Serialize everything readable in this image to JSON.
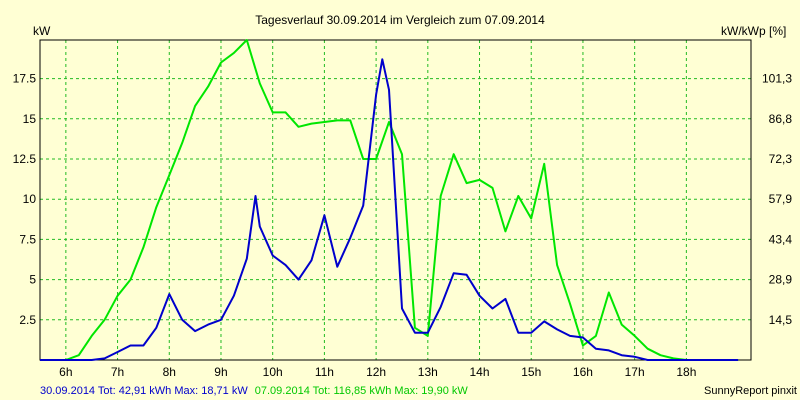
{
  "chart_data": {
    "type": "line",
    "title": "Tagesverlauf 30.09.2014 im Vergleich zum 07.09.2014",
    "ylabel_left": "kW",
    "ylabel_right": "kW/kWp [%]",
    "ylim": [
      0,
      19.9
    ],
    "xlim": [
      5.5,
      19.25
    ],
    "grid": true,
    "x_ticks": [
      6,
      7,
      8,
      9,
      10,
      11,
      12,
      13,
      14,
      15,
      16,
      17,
      18
    ],
    "x_tick_labels": [
      "6h",
      "7h",
      "8h",
      "9h",
      "10h",
      "11h",
      "12h",
      "13h",
      "14h",
      "15h",
      "16h",
      "17h",
      "18h"
    ],
    "y_ticks": [
      2.5,
      5,
      7.5,
      10,
      12.5,
      15,
      17.5
    ],
    "y_tick_labels": [
      "2.5",
      "5",
      "7.5",
      "10",
      "12.5",
      "15",
      "17.5"
    ],
    "y2_tick_labels": [
      "14,5",
      "28,9",
      "43,4",
      "57,9",
      "72,3",
      "86,8",
      "101,3"
    ],
    "series": [
      {
        "name": "30.09.2014",
        "color": "#0000cc",
        "summary": "30.09.2014 Tot: 42,91 kWh Max: 18,71 kW",
        "x": [
          5.5,
          6.5,
          6.75,
          7.0,
          7.25,
          7.5,
          7.75,
          8.0,
          8.25,
          8.5,
          8.75,
          9.0,
          9.25,
          9.5,
          9.667,
          9.75,
          10.0,
          10.25,
          10.5,
          10.75,
          11.0,
          11.25,
          11.5,
          11.75,
          12.0,
          12.12,
          12.25,
          12.5,
          12.75,
          13.0,
          13.25,
          13.5,
          13.75,
          14.0,
          14.25,
          14.5,
          14.75,
          15.0,
          15.25,
          15.5,
          15.75,
          16.0,
          16.25,
          16.5,
          16.75,
          17.0,
          17.25,
          17.5,
          17.75,
          18.0,
          18.25,
          18.5,
          18.75,
          19.0
        ],
        "y": [
          0,
          0,
          0.1,
          0.5,
          0.9,
          0.9,
          2.0,
          4.1,
          2.5,
          1.8,
          2.2,
          2.5,
          4.0,
          6.3,
          10.2,
          8.3,
          6.5,
          5.9,
          5.0,
          6.2,
          9.0,
          5.8,
          7.6,
          9.6,
          16.5,
          18.7,
          16.8,
          3.2,
          1.7,
          1.7,
          3.3,
          5.4,
          5.3,
          4.0,
          3.2,
          3.8,
          1.7,
          1.7,
          2.4,
          1.9,
          1.5,
          1.4,
          0.7,
          0.6,
          0.3,
          0.2,
          0.0,
          0.0,
          0.0,
          0.0,
          0.0,
          0.0,
          0.0,
          0.0
        ]
      },
      {
        "name": "07.09.2014",
        "color": "#00e600",
        "summary": "07.09.2014 Tot: 116,85 kWh Max: 19,90 kW",
        "x": [
          5.5,
          6.0,
          6.25,
          6.5,
          6.75,
          7.0,
          7.25,
          7.5,
          7.75,
          8.0,
          8.25,
          8.5,
          8.75,
          9.0,
          9.25,
          9.5,
          9.75,
          10.0,
          10.25,
          10.5,
          10.75,
          11.0,
          11.25,
          11.5,
          11.75,
          12.0,
          12.25,
          12.5,
          12.75,
          13.0,
          13.25,
          13.5,
          13.75,
          14.0,
          14.25,
          14.5,
          14.75,
          15.0,
          15.25,
          15.5,
          15.75,
          16.0,
          16.25,
          16.5,
          16.75,
          17.0,
          17.25,
          17.5,
          17.75,
          18.0,
          18.25,
          18.5,
          18.75,
          19.0
        ],
        "y": [
          0,
          0,
          0.3,
          1.5,
          2.5,
          4.0,
          5.0,
          7.0,
          9.5,
          11.5,
          13.5,
          15.8,
          17.0,
          18.5,
          19.1,
          19.9,
          17.2,
          15.4,
          15.4,
          14.5,
          14.7,
          14.8,
          14.9,
          14.9,
          12.5,
          12.5,
          14.8,
          12.8,
          2.0,
          1.5,
          10.2,
          12.8,
          11.0,
          11.2,
          10.7,
          8.0,
          10.2,
          8.8,
          12.2,
          5.9,
          3.5,
          0.9,
          1.5,
          4.2,
          2.2,
          1.5,
          0.7,
          0.3,
          0.1,
          0.0,
          0.0,
          0.0,
          0.0,
          0.0
        ]
      }
    ],
    "credit": "SunnyReport pinxit"
  }
}
